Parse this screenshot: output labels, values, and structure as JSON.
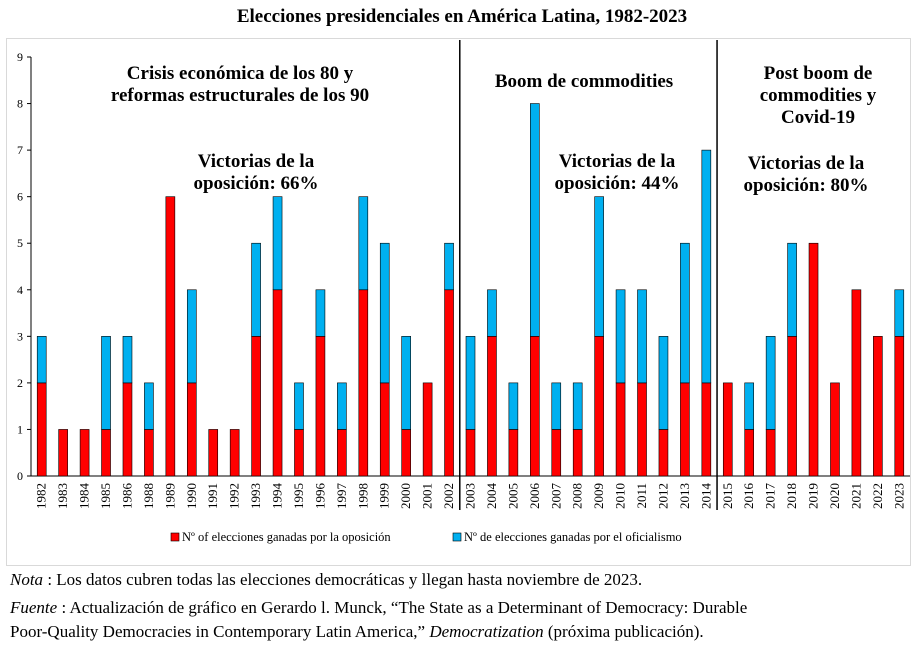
{
  "title": "Elecciones presidenciales en América Latina, 1982-2023",
  "chart_data": {
    "type": "bar",
    "stacked": true,
    "categories": [
      "1982",
      "1983",
      "1984",
      "1985",
      "1986",
      "1988",
      "1989",
      "1990",
      "1991",
      "1992",
      "1993",
      "1994",
      "1995",
      "1996",
      "1997",
      "1998",
      "1999",
      "2000",
      "2001",
      "2002",
      "2003",
      "2004",
      "2005",
      "2006",
      "2007",
      "2008",
      "2009",
      "2010",
      "2011",
      "2012",
      "2013",
      "2014",
      "2015",
      "2016",
      "2017",
      "2018",
      "2019",
      "2020",
      "2021",
      "2022",
      "2023"
    ],
    "series": [
      {
        "name": "Nº of elecciones ganadas por la oposición",
        "color": "#ff0000",
        "values": [
          2,
          1,
          1,
          1,
          2,
          1,
          6,
          2,
          1,
          1,
          3,
          4,
          1,
          3,
          1,
          4,
          2,
          1,
          2,
          4,
          1,
          3,
          1,
          3,
          1,
          1,
          3,
          2,
          2,
          1,
          2,
          2,
          2,
          1,
          1,
          3,
          5,
          2,
          4,
          3,
          3
        ]
      },
      {
        "name": "Nº de elecciones ganadas por el oficialismo",
        "color": "#00b0f0",
        "values": [
          1,
          0,
          0,
          2,
          1,
          1,
          0,
          2,
          0,
          0,
          2,
          2,
          1,
          1,
          1,
          2,
          3,
          2,
          0,
          1,
          2,
          1,
          1,
          5,
          1,
          1,
          3,
          2,
          2,
          2,
          3,
          5,
          0,
          1,
          2,
          2,
          0,
          0,
          0,
          0,
          1
        ]
      }
    ],
    "ylim": [
      0,
      9
    ],
    "yticks": [
      0,
      1,
      2,
      3,
      4,
      5,
      6,
      7,
      8,
      9
    ],
    "grid": false,
    "legend": "bottom",
    "period_dividers_after": [
      "2002",
      "2014"
    ],
    "annotations": [
      {
        "lines": [
          "Crisis económica de los 80 y",
          "reformas estructurales de los 90"
        ]
      },
      {
        "lines": [
          "Boom de commodities"
        ]
      },
      {
        "lines": [
          "Post boom de",
          "commodities y",
          "Covid-19"
        ]
      },
      {
        "lines": [
          "Victorias de la",
          "oposición: 66%"
        ]
      },
      {
        "lines": [
          "Victorias de la",
          "oposición: 44%"
        ]
      },
      {
        "lines": [
          "Victorias de la",
          "oposición: 80%"
        ]
      }
    ]
  },
  "notes": {
    "nota_label": "Nota",
    "nota_text": " : Los datos cubren todas las elecciones democráticas y llegan hasta noviembre de 2023.",
    "fuente_label": "Fuente",
    "fuente_text1": " : Actualización de gráfico en Gerardo l. Munck, “The State as a Determinant of Democracy: Durable",
    "fuente_text2a": "Poor-Quality Democracies in Contemporary Latin America,” ",
    "fuente_journal": "Democratization",
    "fuente_text2b": "  (próxima publicación)."
  }
}
